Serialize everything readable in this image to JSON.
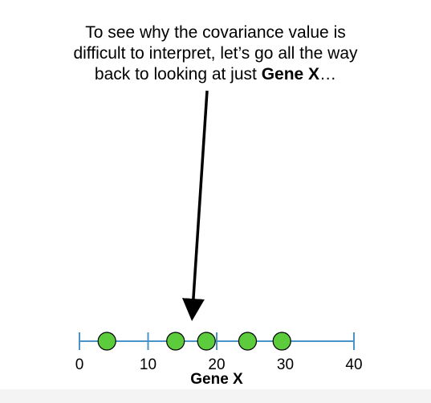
{
  "caption": {
    "line1": "To see why the covariance value is",
    "line2": "difficult to interpret, let’s go all the way",
    "line3_prefix": "back to looking at just ",
    "line3_bold": "Gene X",
    "line3_suffix": "…"
  },
  "chart_data": {
    "type": "scatter",
    "xlabel": "Gene X",
    "xlim": [
      0,
      40
    ],
    "xticks": [
      0,
      10,
      20,
      30,
      40
    ],
    "tick_labels": [
      "0",
      "10",
      "20",
      "30",
      "40"
    ],
    "points": [
      4,
      14,
      18.5,
      24.5,
      29.5
    ],
    "point_color": "#5ccc3c",
    "axis_color": "#4a93c8"
  }
}
